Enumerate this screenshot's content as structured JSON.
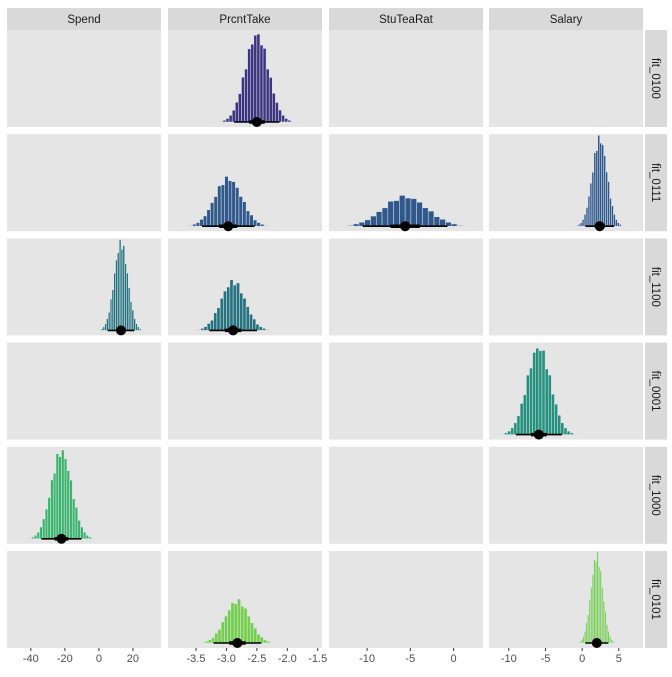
{
  "chart_data": {
    "type": "bar",
    "subtype": "faceted histogram with point-interval (median, 50% and 95% intervals)",
    "columns": [
      {
        "label": "Spend",
        "xlim": [
          -54,
          36.5
        ],
        "ticks": [
          -40,
          -20,
          0,
          20
        ],
        "tick_labels": [
          "-40",
          "-20",
          "0",
          "20"
        ]
      },
      {
        "label": "PrcntTake",
        "xlim": [
          -3.96,
          -1.43
        ],
        "ticks": [
          -3.5,
          -3.0,
          -2.5,
          -2.0,
          -1.5
        ],
        "tick_labels": [
          "-3.5",
          "-3.0",
          "-2.5",
          "-2.0",
          "-1.5"
        ]
      },
      {
        "label": "StuTeaRat",
        "xlim": [
          -14.4,
          3.4
        ],
        "ticks": [
          -10,
          -5,
          0
        ],
        "tick_labels": [
          "-10",
          "-5",
          "0"
        ]
      },
      {
        "label": "Salary",
        "xlim": [
          -12.7,
          8.3
        ],
        "ticks": [
          -10,
          -5,
          0,
          5
        ],
        "tick_labels": [
          "-10",
          "-5",
          "0",
          "5"
        ]
      }
    ],
    "rows": [
      {
        "label": "fit_0100",
        "color": "#3d3580",
        "posteriors": {
          "PrcntTake": {
            "mean": -2.5,
            "sd": 0.19
          }
        }
      },
      {
        "label": "fit_0111",
        "color": "#30588b",
        "posteriors": {
          "PrcntTake": {
            "mean": -2.97,
            "sd": 0.22
          },
          "StuTeaRat": {
            "mean": -5.6,
            "sd": 2.5
          },
          "Salary": {
            "mean": 2.4,
            "sd": 1.0
          }
        }
      },
      {
        "label": "fit_1100",
        "color": "#26727f",
        "posteriors": {
          "Spend": {
            "mean": 13,
            "sd": 4
          },
          "PrcntTake": {
            "mean": -2.89,
            "sd": 0.2
          }
        }
      },
      {
        "label": "fit_0001",
        "color": "#25917d",
        "posteriors": {
          "Salary": {
            "mean": -5.9,
            "sd": 1.6
          }
        }
      },
      {
        "label": "fit_1000",
        "color": "#3bb46c",
        "posteriors": {
          "Spend": {
            "mean": -22,
            "sd": 6
          }
        }
      },
      {
        "label": "fit_0101",
        "color": "#74cf4c",
        "posteriors": {
          "PrcntTake": {
            "mean": -2.82,
            "sd": 0.2
          },
          "Salary": {
            "mean": 2.0,
            "sd": 0.8
          }
        }
      }
    ],
    "bins": 30,
    "intervals": {
      "inner": 0.5,
      "outer": 0.95
    },
    "xlabel": "",
    "ylabel": "",
    "grid": false,
    "legend": "none"
  }
}
